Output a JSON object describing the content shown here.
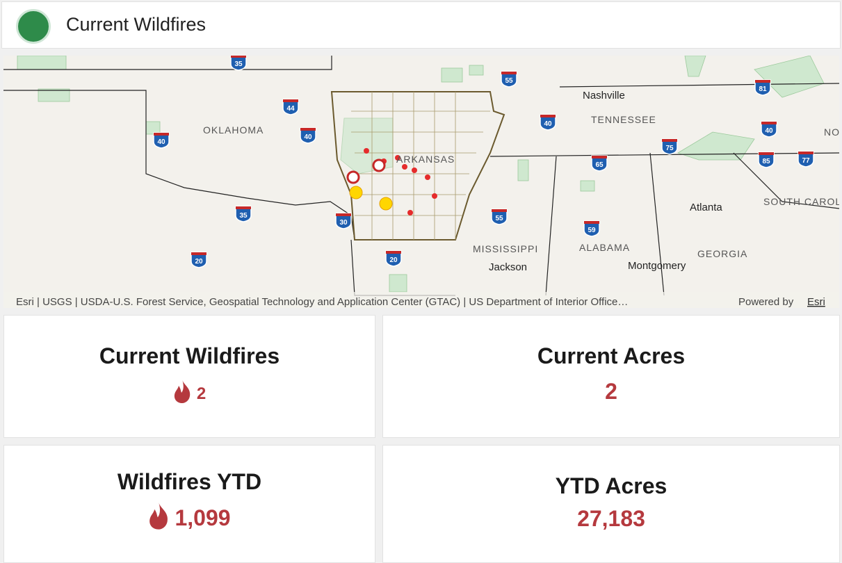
{
  "header": {
    "title": "Current Wildfires"
  },
  "map": {
    "labels": [
      "OKLAHOMA",
      "ARKANSAS",
      "TENNESSEE",
      "Nashville",
      "MISSISSIPPI",
      "Jackson",
      "ALABAMA",
      "Montgomery",
      "GEORGIA",
      "Atlanta",
      "SOUTH CAROLI",
      "NO"
    ],
    "shields": [
      "35",
      "55",
      "81",
      "44",
      "40",
      "40",
      "40",
      "40",
      "75",
      "65",
      "85",
      "77",
      "35",
      "30",
      "55",
      "59",
      "20",
      "20"
    ],
    "attribution": "Esri | USGS | USDA-U.S. Forest Service, Geospatial Technology and Application Center (GTAC) | US Department of Interior Office…",
    "powered_by": "Powered by",
    "esri_link": "Esri"
  },
  "cards": [
    {
      "title": "Current Wildfires",
      "value": "2"
    },
    {
      "title": "Current Acres",
      "value": "2"
    },
    {
      "title": "Wildfires YTD",
      "value": "1,099"
    },
    {
      "title": "YTD Acres",
      "value": "27,183"
    }
  ]
}
